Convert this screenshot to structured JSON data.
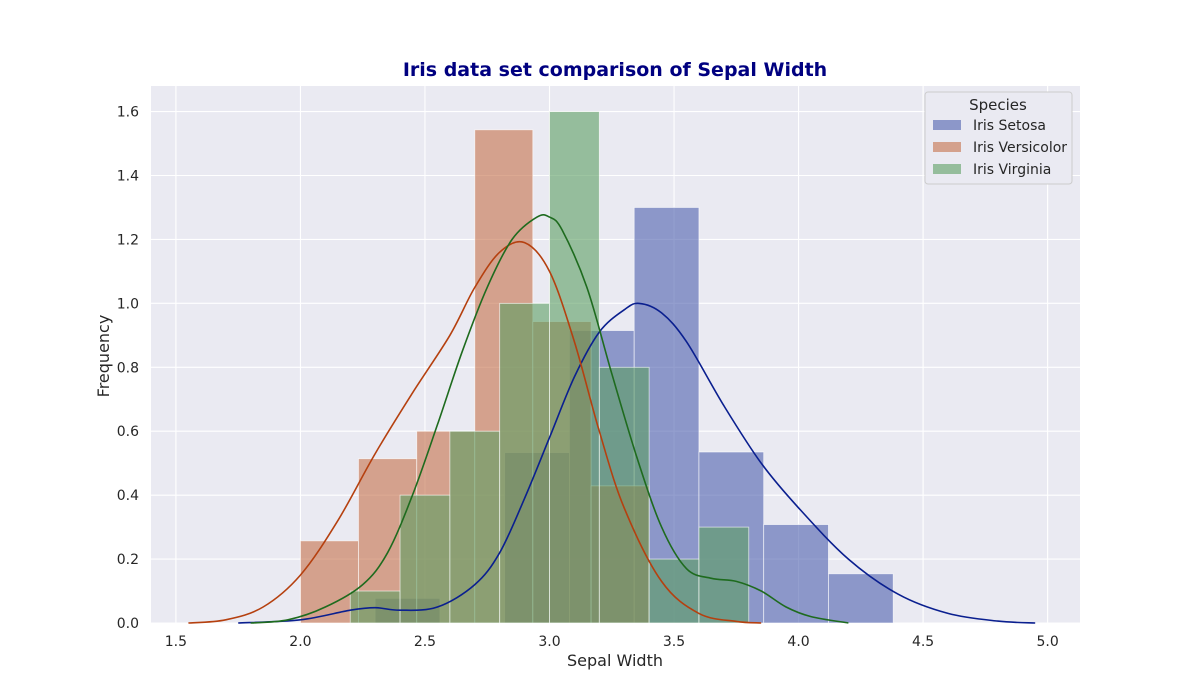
{
  "chart_data": {
    "type": "bar",
    "title": "Iris data set comparison of Sepal Width",
    "xlabel": "Sepal Width",
    "ylabel": "Frequency",
    "xlim": [
      1.4,
      5.13
    ],
    "ylim": [
      0,
      1.68
    ],
    "xticks": [
      1.5,
      2.0,
      2.5,
      3.0,
      3.5,
      4.0,
      4.5,
      5.0
    ],
    "xtick_labels": [
      "1.5",
      "2.0",
      "2.5",
      "3.0",
      "3.5",
      "4.0",
      "4.5",
      "5.0"
    ],
    "yticks": [
      0.0,
      0.2,
      0.4,
      0.6,
      0.8,
      1.0,
      1.2,
      1.4,
      1.6
    ],
    "ytick_labels": [
      "0.0",
      "0.2",
      "0.4",
      "0.6",
      "0.8",
      "1.0",
      "1.2",
      "1.4",
      "1.6"
    ],
    "grid": true,
    "legend": {
      "title": "Species",
      "position": "top-right"
    },
    "colors": {
      "background": "#eaeaf2",
      "grid": "#ffffff",
      "title": "#000080"
    },
    "series": [
      {
        "name": "Iris Setosa",
        "bar_color": "#4c5fad",
        "line_color": "#0a1f8f",
        "bins": [
          {
            "x0": 2.3,
            "x1": 2.56,
            "h": 0.077
          },
          {
            "x0": 2.56,
            "x1": 2.82,
            "h": 0.0
          },
          {
            "x0": 2.82,
            "x1": 3.08,
            "h": 0.533
          },
          {
            "x0": 3.08,
            "x1": 3.34,
            "h": 0.915
          },
          {
            "x0": 3.34,
            "x1": 3.6,
            "h": 1.3
          },
          {
            "x0": 3.6,
            "x1": 3.86,
            "h": 0.535
          },
          {
            "x0": 3.86,
            "x1": 4.12,
            "h": 0.308
          },
          {
            "x0": 4.12,
            "x1": 4.38,
            "h": 0.154
          }
        ],
        "kde": {
          "x": [
            1.75,
            2.0,
            2.2,
            2.3,
            2.4,
            2.55,
            2.7,
            2.8,
            2.9,
            3.0,
            3.1,
            3.2,
            3.3,
            3.36,
            3.45,
            3.55,
            3.7,
            3.85,
            4.0,
            4.2,
            4.4,
            4.6,
            4.8,
            4.95
          ],
          "y": [
            0.0,
            0.01,
            0.04,
            0.048,
            0.04,
            0.05,
            0.12,
            0.22,
            0.39,
            0.58,
            0.77,
            0.91,
            0.98,
            1.0,
            0.97,
            0.88,
            0.68,
            0.5,
            0.36,
            0.2,
            0.09,
            0.03,
            0.006,
            0.0
          ]
        }
      },
      {
        "name": "Iris Versicolor",
        "bar_color": "#c4704a",
        "line_color": "#b5400f",
        "bins": [
          {
            "x0": 2.0,
            "x1": 2.233,
            "h": 0.257
          },
          {
            "x0": 2.233,
            "x1": 2.467,
            "h": 0.514
          },
          {
            "x0": 2.467,
            "x1": 2.7,
            "h": 0.6
          },
          {
            "x0": 2.7,
            "x1": 2.933,
            "h": 1.543
          },
          {
            "x0": 2.933,
            "x1": 3.167,
            "h": 0.943
          },
          {
            "x0": 3.167,
            "x1": 3.4,
            "h": 0.429
          }
        ],
        "kde": {
          "x": [
            1.55,
            1.7,
            1.85,
            2.0,
            2.15,
            2.3,
            2.45,
            2.6,
            2.7,
            2.8,
            2.9,
            3.0,
            3.1,
            3.2,
            3.3,
            3.45,
            3.6,
            3.75,
            3.85
          ],
          "y": [
            0.0,
            0.01,
            0.05,
            0.15,
            0.32,
            0.53,
            0.72,
            0.9,
            1.05,
            1.16,
            1.19,
            1.1,
            0.88,
            0.6,
            0.36,
            0.13,
            0.03,
            0.005,
            0.0
          ]
        }
      },
      {
        "name": "Iris Virginia",
        "bar_color": "#5b9e62",
        "line_color": "#1e6b1e",
        "bins": [
          {
            "x0": 2.2,
            "x1": 2.4,
            "h": 0.1
          },
          {
            "x0": 2.4,
            "x1": 2.6,
            "h": 0.4
          },
          {
            "x0": 2.6,
            "x1": 2.8,
            "h": 0.6
          },
          {
            "x0": 2.8,
            "x1": 3.0,
            "h": 1.0
          },
          {
            "x0": 3.0,
            "x1": 3.2,
            "h": 1.6
          },
          {
            "x0": 3.2,
            "x1": 3.4,
            "h": 0.8
          },
          {
            "x0": 3.4,
            "x1": 3.6,
            "h": 0.2
          },
          {
            "x0": 3.6,
            "x1": 3.8,
            "h": 0.3
          }
        ],
        "kde": {
          "x": [
            1.8,
            1.95,
            2.1,
            2.25,
            2.35,
            2.45,
            2.55,
            2.65,
            2.75,
            2.85,
            2.95,
            3.0,
            3.05,
            3.15,
            3.25,
            3.35,
            3.45,
            3.55,
            3.65,
            3.75,
            3.85,
            3.95,
            4.05,
            4.2
          ],
          "y": [
            0.0,
            0.01,
            0.05,
            0.12,
            0.22,
            0.4,
            0.62,
            0.85,
            1.05,
            1.2,
            1.27,
            1.27,
            1.23,
            1.05,
            0.78,
            0.52,
            0.3,
            0.17,
            0.14,
            0.13,
            0.1,
            0.05,
            0.02,
            0.0
          ]
        }
      }
    ]
  }
}
